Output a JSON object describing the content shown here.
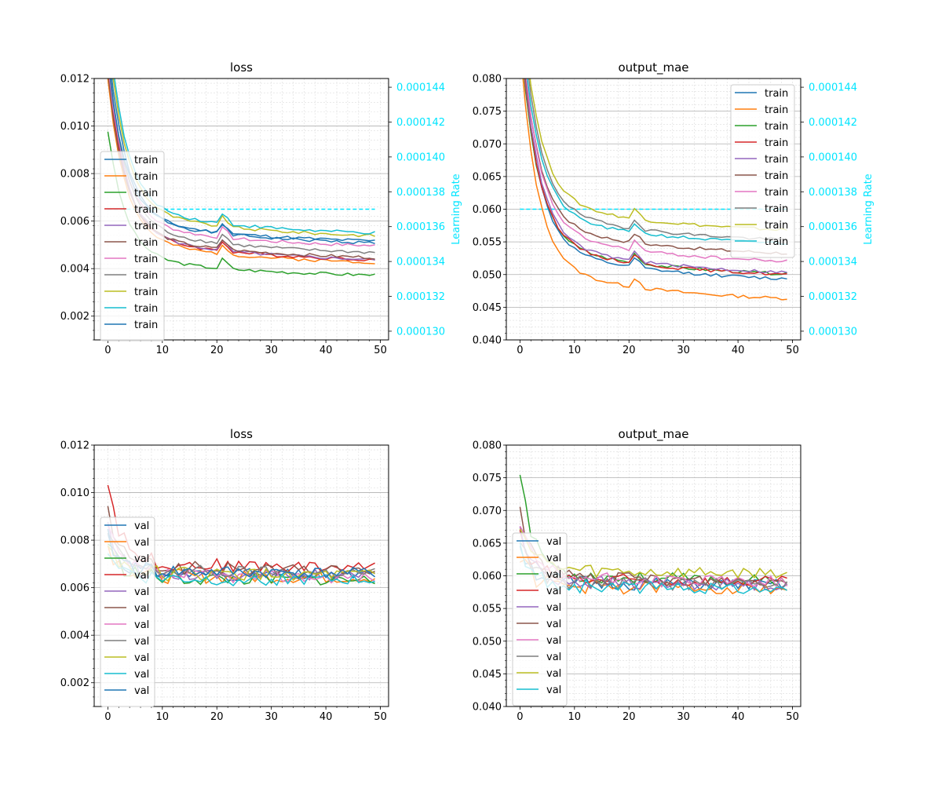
{
  "palette": [
    "#1f77b4",
    "#ff7f0e",
    "#2ca02c",
    "#d62728",
    "#9467bd",
    "#8c564b",
    "#e377c2",
    "#7f7f7f",
    "#bcbd22",
    "#17becf"
  ],
  "lr_color": "#00e5ff",
  "chart_data": [
    {
      "type": "line",
      "title": "loss",
      "x": [
        0,
        1,
        2,
        3,
        4,
        5,
        6,
        7,
        8,
        9,
        10,
        11,
        12,
        13,
        14,
        15,
        16,
        17,
        18,
        19,
        20,
        21,
        22,
        23,
        24,
        25,
        26,
        27,
        28,
        29,
        30,
        31,
        32,
        33,
        34,
        35,
        36,
        37,
        38,
        39,
        40,
        41,
        42,
        43,
        44,
        45,
        46,
        47,
        48,
        49
      ],
      "xlim": [
        -2.5,
        51.5
      ],
      "ylim": [
        0.001,
        0.012
      ],
      "xticks": [
        "0",
        "10",
        "20",
        "30",
        "40",
        "50"
      ],
      "yticks": [
        "0.002",
        "0.004",
        "0.006",
        "0.008",
        "0.010",
        "0.012"
      ],
      "legend_position": "center-left",
      "grid": true,
      "series": [
        {
          "name": "train",
          "start": 0.0135,
          "end": 0.0049,
          "seed": 1
        },
        {
          "name": "train",
          "start": 0.012,
          "end": 0.0041,
          "seed": 2
        },
        {
          "name": "train",
          "start": 0.0098,
          "end": 0.0036,
          "seed": 3
        },
        {
          "name": "train",
          "start": 0.0125,
          "end": 0.0042,
          "seed": 4
        },
        {
          "name": "train",
          "start": 0.0128,
          "end": 0.0042,
          "seed": 5
        },
        {
          "name": "train",
          "start": 0.0122,
          "end": 0.0043,
          "seed": 6
        },
        {
          "name": "train",
          "start": 0.0126,
          "end": 0.0048,
          "seed": 7
        },
        {
          "name": "train",
          "start": 0.013,
          "end": 0.0045,
          "seed": 8
        },
        {
          "name": "train",
          "start": 0.014,
          "end": 0.0052,
          "seed": 9
        },
        {
          "name": "train",
          "start": 0.0145,
          "end": 0.0053,
          "seed": 10
        },
        {
          "name": "train",
          "start": 0.0128,
          "end": 0.005,
          "seed": 11
        }
      ],
      "learning_rate": {
        "label": "Learning Rate",
        "value": 0.000137,
        "ylim": [
          0.0001295,
          0.0001445
        ],
        "yticks": [
          "0.000130",
          "0.000132",
          "0.000134",
          "0.000136",
          "0.000138",
          "0.000140",
          "0.000142",
          "0.000144"
        ]
      }
    },
    {
      "type": "line",
      "title": "output_mae",
      "x": [
        0,
        1,
        2,
        3,
        4,
        5,
        6,
        7,
        8,
        9,
        10,
        11,
        12,
        13,
        14,
        15,
        16,
        17,
        18,
        19,
        20,
        21,
        22,
        23,
        24,
        25,
        26,
        27,
        28,
        29,
        30,
        31,
        32,
        33,
        34,
        35,
        36,
        37,
        38,
        39,
        40,
        41,
        42,
        43,
        44,
        45,
        46,
        47,
        48,
        49
      ],
      "xlim": [
        -2.5,
        51.5
      ],
      "ylim": [
        0.04,
        0.08
      ],
      "xticks": [
        "0",
        "10",
        "20",
        "30",
        "40",
        "50"
      ],
      "yticks": [
        "0.040",
        "0.045",
        "0.050",
        "0.055",
        "0.060",
        "0.065",
        "0.070",
        "0.075",
        "0.080"
      ],
      "legend_position": "upper-right",
      "grid": true,
      "series": [
        {
          "name": "train",
          "start": 0.088,
          "end": 0.0485,
          "seed": 12
        },
        {
          "name": "train",
          "start": 0.085,
          "end": 0.0455,
          "seed": 13
        },
        {
          "name": "train",
          "start": 0.087,
          "end": 0.0493,
          "seed": 14
        },
        {
          "name": "train",
          "start": 0.088,
          "end": 0.0492,
          "seed": 15
        },
        {
          "name": "train",
          "start": 0.089,
          "end": 0.0495,
          "seed": 16
        },
        {
          "name": "train",
          "start": 0.089,
          "end": 0.0525,
          "seed": 17
        },
        {
          "name": "train",
          "start": 0.09,
          "end": 0.0512,
          "seed": 18
        },
        {
          "name": "train",
          "start": 0.093,
          "end": 0.0545,
          "seed": 19
        },
        {
          "name": "train",
          "start": 0.095,
          "end": 0.056,
          "seed": 20
        },
        {
          "name": "train",
          "start": 0.091,
          "end": 0.054,
          "seed": 21
        }
      ],
      "learning_rate": {
        "label": "Learning Rate",
        "value": 0.000137,
        "ylim": [
          0.0001295,
          0.0001445
        ],
        "yticks": [
          "0.000130",
          "0.000132",
          "0.000134",
          "0.000136",
          "0.000138",
          "0.000140",
          "0.000142",
          "0.000144"
        ]
      }
    },
    {
      "type": "line",
      "title": "loss",
      "x": [
        0,
        1,
        2,
        3,
        4,
        5,
        6,
        7,
        8,
        9,
        10,
        11,
        12,
        13,
        14,
        15,
        16,
        17,
        18,
        19,
        20,
        21,
        22,
        23,
        24,
        25,
        26,
        27,
        28,
        29,
        30,
        31,
        32,
        33,
        34,
        35,
        36,
        37,
        38,
        39,
        40,
        41,
        42,
        43,
        44,
        45,
        46,
        47,
        48,
        49
      ],
      "xlim": [
        -2.5,
        51.5
      ],
      "ylim": [
        0.001,
        0.012
      ],
      "xticks": [
        "0",
        "10",
        "20",
        "30",
        "40",
        "50"
      ],
      "yticks": [
        "0.002",
        "0.004",
        "0.006",
        "0.008",
        "0.010",
        "0.012"
      ],
      "legend_position": "center-left",
      "grid": true,
      "series": [
        {
          "name": "val",
          "start": 0.0082,
          "end": 0.0065,
          "seed": 31
        },
        {
          "name": "val",
          "start": 0.0078,
          "end": 0.0064,
          "seed": 32
        },
        {
          "name": "val",
          "start": 0.008,
          "end": 0.0063,
          "seed": 33
        },
        {
          "name": "val",
          "start": 0.0106,
          "end": 0.0068,
          "seed": 34
        },
        {
          "name": "val",
          "start": 0.0084,
          "end": 0.0065,
          "seed": 35
        },
        {
          "name": "val",
          "start": 0.0092,
          "end": 0.0067,
          "seed": 36
        },
        {
          "name": "val",
          "start": 0.0085,
          "end": 0.0064,
          "seed": 37
        },
        {
          "name": "val",
          "start": 0.0083,
          "end": 0.0066,
          "seed": 38
        },
        {
          "name": "val",
          "start": 0.0079,
          "end": 0.0065,
          "seed": 39
        },
        {
          "name": "val",
          "start": 0.0077,
          "end": 0.0063,
          "seed": 40
        },
        {
          "name": "val",
          "start": 0.0081,
          "end": 0.0066,
          "seed": 41
        }
      ]
    },
    {
      "type": "line",
      "title": "output_mae",
      "x": [
        0,
        1,
        2,
        3,
        4,
        5,
        6,
        7,
        8,
        9,
        10,
        11,
        12,
        13,
        14,
        15,
        16,
        17,
        18,
        19,
        20,
        21,
        22,
        23,
        24,
        25,
        26,
        27,
        28,
        29,
        30,
        31,
        32,
        33,
        34,
        35,
        36,
        37,
        38,
        39,
        40,
        41,
        42,
        43,
        44,
        45,
        46,
        47,
        48,
        49
      ],
      "xlim": [
        -2.5,
        51.5
      ],
      "ylim": [
        0.04,
        0.08
      ],
      "xticks": [
        "0",
        "10",
        "20",
        "30",
        "40",
        "50"
      ],
      "yticks": [
        "0.040",
        "0.045",
        "0.050",
        "0.055",
        "0.060",
        "0.065",
        "0.070",
        "0.075",
        "0.080"
      ],
      "legend_position": "center-left",
      "grid": true,
      "series": [
        {
          "name": "val",
          "start": 0.065,
          "end": 0.0585,
          "seed": 51
        },
        {
          "name": "val",
          "start": 0.063,
          "end": 0.058,
          "seed": 52
        },
        {
          "name": "val",
          "start": 0.0768,
          "end": 0.059,
          "seed": 53
        },
        {
          "name": "val",
          "start": 0.066,
          "end": 0.059,
          "seed": 54
        },
        {
          "name": "val",
          "start": 0.067,
          "end": 0.0585,
          "seed": 55
        },
        {
          "name": "val",
          "start": 0.0705,
          "end": 0.059,
          "seed": 56
        },
        {
          "name": "val",
          "start": 0.068,
          "end": 0.059,
          "seed": 57
        },
        {
          "name": "val",
          "start": 0.066,
          "end": 0.0585,
          "seed": 58
        },
        {
          "name": "val",
          "start": 0.0685,
          "end": 0.0603,
          "seed": 59
        },
        {
          "name": "val",
          "start": 0.064,
          "end": 0.058,
          "seed": 60
        }
      ]
    }
  ]
}
